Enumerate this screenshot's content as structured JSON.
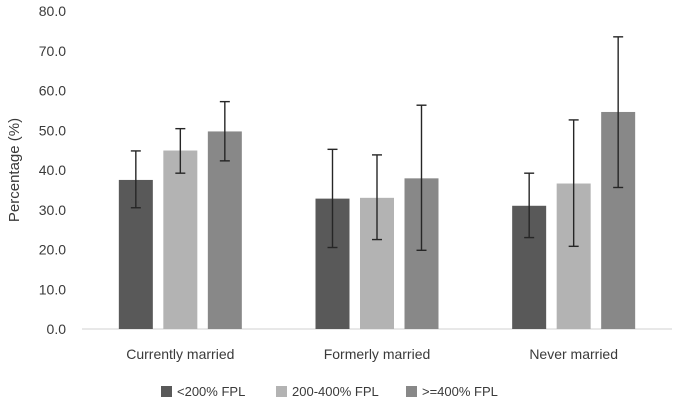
{
  "chart_data": {
    "type": "bar",
    "title": "",
    "xlabel": "",
    "ylabel": "Percentage (%)",
    "ylim": [
      0,
      80
    ],
    "yticks": [
      "0.0",
      "10.0",
      "20.0",
      "30.0",
      "40.0",
      "50.0",
      "60.0",
      "70.0",
      "80.0"
    ],
    "grid": false,
    "categories": [
      "Currently married",
      "Formerly married",
      "Never married"
    ],
    "series": [
      {
        "name": "<200% FPL",
        "color": "#595959",
        "values": [
          37.5,
          32.8,
          31.0
        ],
        "error_low": [
          30.5,
          20.5,
          23.0
        ],
        "error_high": [
          44.8,
          45.2,
          39.2
        ]
      },
      {
        "name": "200-400% FPL",
        "color": "#b3b3b3",
        "values": [
          44.9,
          33.0,
          36.6
        ],
        "error_low": [
          39.2,
          22.5,
          20.8
        ],
        "error_high": [
          50.4,
          43.8,
          52.6
        ]
      },
      {
        "name": ">=400% FPL",
        "color": "#888888",
        "values": [
          49.7,
          37.9,
          54.6
        ],
        "error_low": [
          42.3,
          19.8,
          35.6
        ],
        "error_high": [
          57.2,
          56.3,
          73.5
        ]
      }
    ],
    "legend_position": "bottom"
  }
}
